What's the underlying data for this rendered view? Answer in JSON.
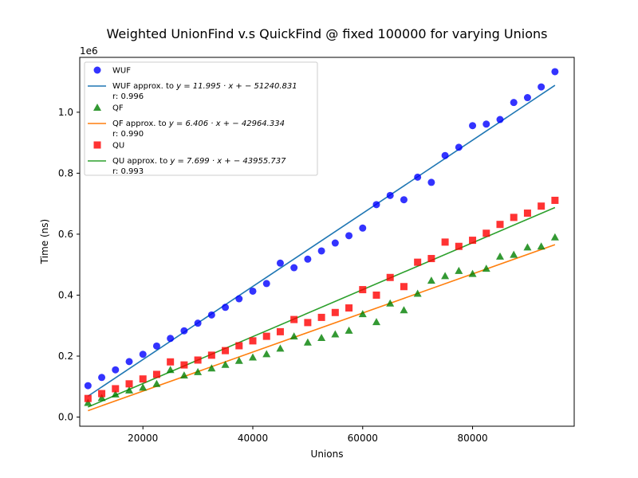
{
  "chart_data": {
    "type": "scatter",
    "title": "Weighted UnionFind v.s QuickFind @ fixed 100000 for varying Unions",
    "xlabel": "Unions",
    "ylabel": "Time (ns)",
    "y_scale_label": "1e6",
    "xlim": [
      8500,
      98500
    ],
    "ylim": [
      -0.03,
      1.18
    ],
    "x_ticks": [
      {
        "value": 20000,
        "label": "20000"
      },
      {
        "value": 40000,
        "label": "40000"
      },
      {
        "value": 60000,
        "label": "60000"
      },
      {
        "value": 80000,
        "label": "80000"
      }
    ],
    "y_ticks": [
      {
        "value": 0.0,
        "label": "0.0"
      },
      {
        "value": 0.2,
        "label": "0.2"
      },
      {
        "value": 0.4,
        "label": "0.4"
      },
      {
        "value": 0.6,
        "label": "0.6"
      },
      {
        "value": 0.8,
        "label": "0.8"
      },
      {
        "value": 1.0,
        "label": "1.0"
      }
    ],
    "grid": false,
    "legend_position": "upper-left",
    "x": [
      10000,
      12500,
      15000,
      17500,
      20000,
      22500,
      25000,
      27500,
      30000,
      32500,
      35000,
      37500,
      40000,
      42500,
      45000,
      47500,
      50000,
      52500,
      55000,
      57500,
      60000,
      62500,
      65000,
      67500,
      70000,
      72500,
      75000,
      77500,
      80000,
      82500,
      85000,
      87500,
      90000,
      92500,
      95000
    ],
    "series": [
      {
        "name": "WUF",
        "kind": "scatter",
        "marker": "circle",
        "color": "#0000ff",
        "values": [
          0.103,
          0.13,
          0.155,
          0.182,
          0.206,
          0.233,
          0.258,
          0.283,
          0.308,
          0.335,
          0.36,
          0.388,
          0.413,
          0.438,
          0.505,
          0.49,
          0.518,
          0.545,
          0.571,
          0.595,
          0.62,
          0.697,
          0.727,
          0.713,
          0.787,
          0.77,
          0.858,
          0.885,
          0.956,
          0.961,
          0.976,
          1.032,
          1.048,
          1.083,
          1.133
        ]
      },
      {
        "name": "WUF approx. to ",
        "fit_equation": "y = 11.995 · x + − 51240.831",
        "r_label": "r: 0.996",
        "kind": "line",
        "color": "#1f77b4",
        "slope": 11.995,
        "intercept": -51240.831
      },
      {
        "name": "QF",
        "kind": "scatter",
        "marker": "triangle",
        "color": "#008000",
        "values": [
          0.047,
          0.063,
          0.075,
          0.088,
          0.097,
          0.109,
          0.155,
          0.137,
          0.148,
          0.16,
          0.172,
          0.185,
          0.196,
          0.207,
          0.225,
          0.265,
          0.245,
          0.26,
          0.272,
          0.284,
          0.338,
          0.312,
          0.373,
          0.351,
          0.405,
          0.448,
          0.463,
          0.48,
          0.47,
          0.487,
          0.527,
          0.533,
          0.557,
          0.56,
          0.59
        ]
      },
      {
        "name": "QF approx. to ",
        "fit_equation": "y = 6.406 · x + − 42964.334",
        "r_label": "r: 0.990",
        "kind": "line",
        "color": "#ff7f0e",
        "slope": 6.406,
        "intercept": -42964.334
      },
      {
        "name": "QU",
        "kind": "scatter",
        "marker": "square",
        "color": "#ff0000",
        "values": [
          0.061,
          0.077,
          0.093,
          0.109,
          0.125,
          0.14,
          0.181,
          0.171,
          0.187,
          0.203,
          0.218,
          0.234,
          0.25,
          0.265,
          0.28,
          0.32,
          0.31,
          0.327,
          0.343,
          0.358,
          0.418,
          0.4,
          0.458,
          0.428,
          0.508,
          0.52,
          0.574,
          0.56,
          0.58,
          0.603,
          0.632,
          0.655,
          0.669,
          0.692,
          0.711
        ]
      },
      {
        "name": "QU approx. to ",
        "fit_equation": "y = 7.699 · x + − 43955.737",
        "r_label": "r: 0.993",
        "kind": "line",
        "color": "#2ca02c",
        "slope": 7.699,
        "intercept": -43955.737
      }
    ]
  }
}
